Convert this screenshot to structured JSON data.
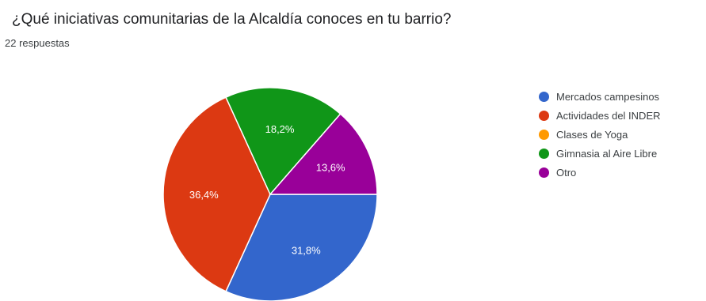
{
  "header": {
    "question": "¿Qué iniciativas comunitarias de la Alcaldía conoces en tu barrio?",
    "response_count": "22 respuestas"
  },
  "chart_data": {
    "type": "pie",
    "title": "¿Qué iniciativas comunitarias de la Alcaldía conoces en tu barrio?",
    "legend_position": "right",
    "slices": [
      {
        "label": "Mercados campesinos",
        "value": 31.8,
        "display": "31,8%",
        "color": "#3366cc"
      },
      {
        "label": "Actividades del INDER",
        "value": 36.4,
        "display": "36,4%",
        "color": "#dc3912"
      },
      {
        "label": "Clases de Yoga",
        "value": 0,
        "display": "",
        "color": "#ff9900"
      },
      {
        "label": "Gimnasia al Aire Libre",
        "value": 18.2,
        "display": "18,2%",
        "color": "#109618"
      },
      {
        "label": "Otro",
        "value": 13.6,
        "display": "13,6%",
        "color": "#990099"
      }
    ]
  }
}
